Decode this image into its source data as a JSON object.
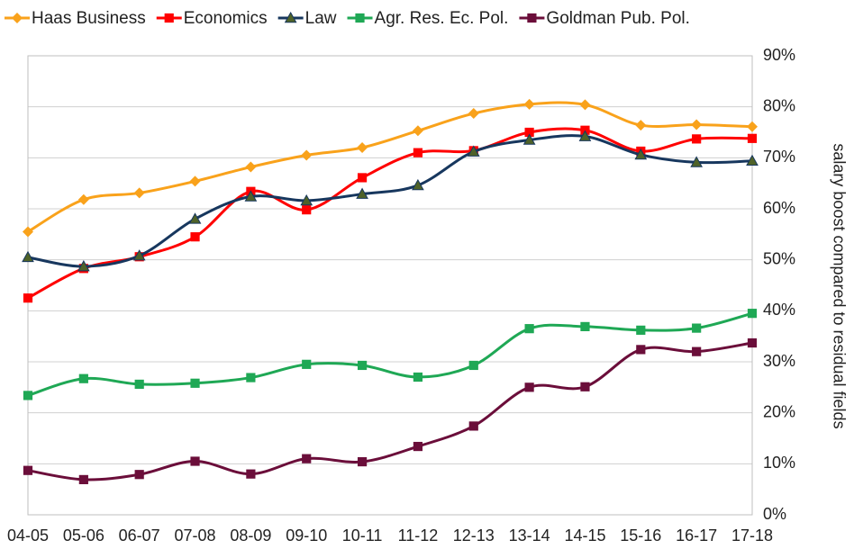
{
  "chart_data": {
    "type": "line",
    "categories": [
      "04-05",
      "05-06",
      "06-07",
      "07-08",
      "08-09",
      "09-10",
      "10-11",
      "11-12",
      "12-13",
      "13-14",
      "14-15",
      "15-16",
      "16-17",
      "17-18"
    ],
    "series": [
      {
        "name": "Haas Business",
        "color": "#f9a21b",
        "marker": "diamond",
        "values": [
          55.5,
          61.8,
          63.1,
          65.4,
          68.2,
          70.5,
          72.0,
          75.3,
          78.7,
          80.5,
          80.4,
          76.4,
          76.5,
          76.1
        ]
      },
      {
        "name": "Economics",
        "color": "#ff0000",
        "marker": "square",
        "values": [
          42.5,
          48.3,
          50.6,
          54.5,
          63.4,
          59.8,
          66.1,
          71.0,
          71.4,
          75.0,
          75.4,
          71.3,
          73.7,
          73.8
        ]
      },
      {
        "name": "Law",
        "color": "#17375e",
        "marker": "triangle",
        "values": [
          50.5,
          48.7,
          50.8,
          58.0,
          62.4,
          61.6,
          62.9,
          64.6,
          71.2,
          73.5,
          74.2,
          70.6,
          69.1,
          69.4
        ]
      },
      {
        "name": "Agr. Res. Ec. Pol.",
        "color": "#1fa855",
        "marker": "square",
        "values": [
          23.4,
          26.7,
          25.6,
          25.8,
          26.9,
          29.5,
          29.3,
          27.0,
          29.3,
          36.5,
          36.9,
          36.2,
          36.6,
          39.5
        ]
      },
      {
        "name": "Goldman Pub. Pol.",
        "color": "#6b0e3a",
        "marker": "square",
        "values": [
          8.7,
          6.9,
          7.9,
          10.5,
          8.0,
          11.0,
          10.4,
          13.4,
          17.4,
          25.0,
          25.1,
          32.4,
          32.0,
          33.7
        ]
      }
    ],
    "y_axis_label": "salary boost compared to residual fields",
    "ylim": [
      0,
      90
    ],
    "yticks": [
      {
        "value": 0,
        "label": "0%"
      },
      {
        "value": 10,
        "label": "10%"
      },
      {
        "value": 20,
        "label": "20%"
      },
      {
        "value": 30,
        "label": "30%"
      },
      {
        "value": 40,
        "label": "40%"
      },
      {
        "value": 50,
        "label": "50%"
      },
      {
        "value": 60,
        "label": "60%"
      },
      {
        "value": 70,
        "label": "70%"
      },
      {
        "value": 80,
        "label": "80%"
      },
      {
        "value": 90,
        "label": "90%"
      }
    ],
    "grid": true,
    "smooth": true,
    "legend": "top"
  }
}
